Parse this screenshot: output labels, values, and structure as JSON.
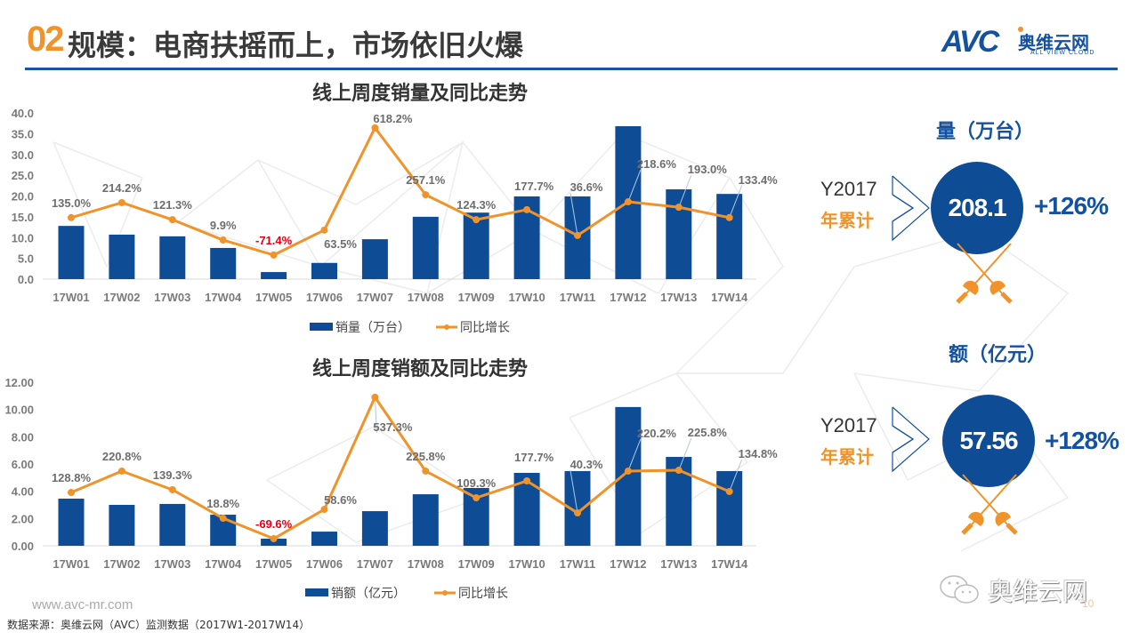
{
  "header": {
    "section_number": "02",
    "title": "规模：电商扶摇而上，市场依旧火爆"
  },
  "logo": {
    "mark": "AVC",
    "name_cn": "奥维云网",
    "name_en": "ALL VIEW CLOUD"
  },
  "colors": {
    "bar": "#0f4c96",
    "line": "#f0932b",
    "brand_blue": "#1452a0",
    "negative_label": "#e60012"
  },
  "chart_data": [
    {
      "type": "bar",
      "title": "线上周度销量及同比走势",
      "categories": [
        "17W01",
        "17W02",
        "17W03",
        "17W04",
        "17W05",
        "17W06",
        "17W07",
        "17W08",
        "17W09",
        "17W10",
        "17W11",
        "17W12",
        "17W13",
        "17W14"
      ],
      "yticks": [
        "40.0",
        "35.0",
        "30.0",
        "25.0",
        "20.0",
        "15.0",
        "10.0",
        "5.0",
        "0.0"
      ],
      "ylim": [
        0,
        40
      ],
      "grid": false,
      "legend_position": "bottom",
      "series": [
        {
          "name": "销量（万台）",
          "type": "bar",
          "values": [
            12.8,
            10.7,
            10.3,
            7.5,
            1.7,
            3.9,
            9.6,
            15.0,
            16.0,
            19.9,
            19.9,
            36.8,
            21.6,
            20.5
          ]
        },
        {
          "name": "同比增长",
          "type": "line",
          "values_on_primary_axis": [
            14.8,
            18.4,
            14.3,
            9.4,
            5.8,
            11.8,
            36.4,
            20.3,
            14.3,
            16.7,
            10.5,
            18.6,
            17.3,
            14.8
          ],
          "labels": [
            "135.0%",
            "214.2%",
            "121.3%",
            "9.9%",
            "-71.4%",
            "63.5%",
            "618.2%",
            "257.1%",
            "124.3%",
            "177.7%",
            "36.6%",
            "218.6%",
            "193.0%",
            "133.4%"
          ]
        }
      ]
    },
    {
      "type": "bar",
      "title": "线上周度销额及同比走势",
      "categories": [
        "17W01",
        "17W02",
        "17W03",
        "17W04",
        "17W05",
        "17W06",
        "17W07",
        "17W08",
        "17W09",
        "17W10",
        "17W11",
        "17W12",
        "17W13",
        "17W14"
      ],
      "yticks": [
        "12.00",
        "10.00",
        "8.00",
        "6.00",
        "4.00",
        "2.00",
        "0.00"
      ],
      "ylim": [
        0,
        12
      ],
      "grid": false,
      "legend_position": "bottom",
      "series": [
        {
          "name": "销额（亿元）",
          "type": "bar",
          "values": [
            3.46,
            3.0,
            3.07,
            2.28,
            0.52,
            1.04,
            2.54,
            3.78,
            4.24,
            5.35,
            5.48,
            10.18,
            6.52,
            5.48
          ]
        },
        {
          "name": "同比增长",
          "type": "line",
          "values_on_primary_axis": [
            3.91,
            5.48,
            4.11,
            2.02,
            0.52,
            2.67,
            10.9,
            5.48,
            3.52,
            4.76,
            2.41,
            5.48,
            5.54,
            3.98
          ],
          "labels": [
            "128.8%",
            "220.8%",
            "139.3%",
            "18.8%",
            "-69.6%",
            "58.6%",
            "537.3%",
            "225.8%",
            "109.3%",
            "177.7%",
            "40.3%",
            "220.2%",
            "225.8%",
            "134.8%"
          ]
        }
      ]
    }
  ],
  "kpis": [
    {
      "heading": "量（万台）",
      "year": "Y2017",
      "cumulative_label": "年累计",
      "value": "208.1",
      "growth": "+126%"
    },
    {
      "heading": "额（亿元）",
      "year": "Y2017",
      "cumulative_label": "年累计",
      "value": "57.56",
      "growth": "+128%"
    }
  ],
  "footer": {
    "url": "www.avc-mr.com",
    "source": "数据来源：奥维云网（AVC）监测数据（2017W1-2017W14）",
    "watermark": "奥维云网",
    "page_number": "10"
  },
  "icons": {
    "arrow": "outline-chevron-arrow-icon",
    "crossed_swords": "crossed-fencing-swords-icon",
    "wechat": "wechat-icon"
  }
}
